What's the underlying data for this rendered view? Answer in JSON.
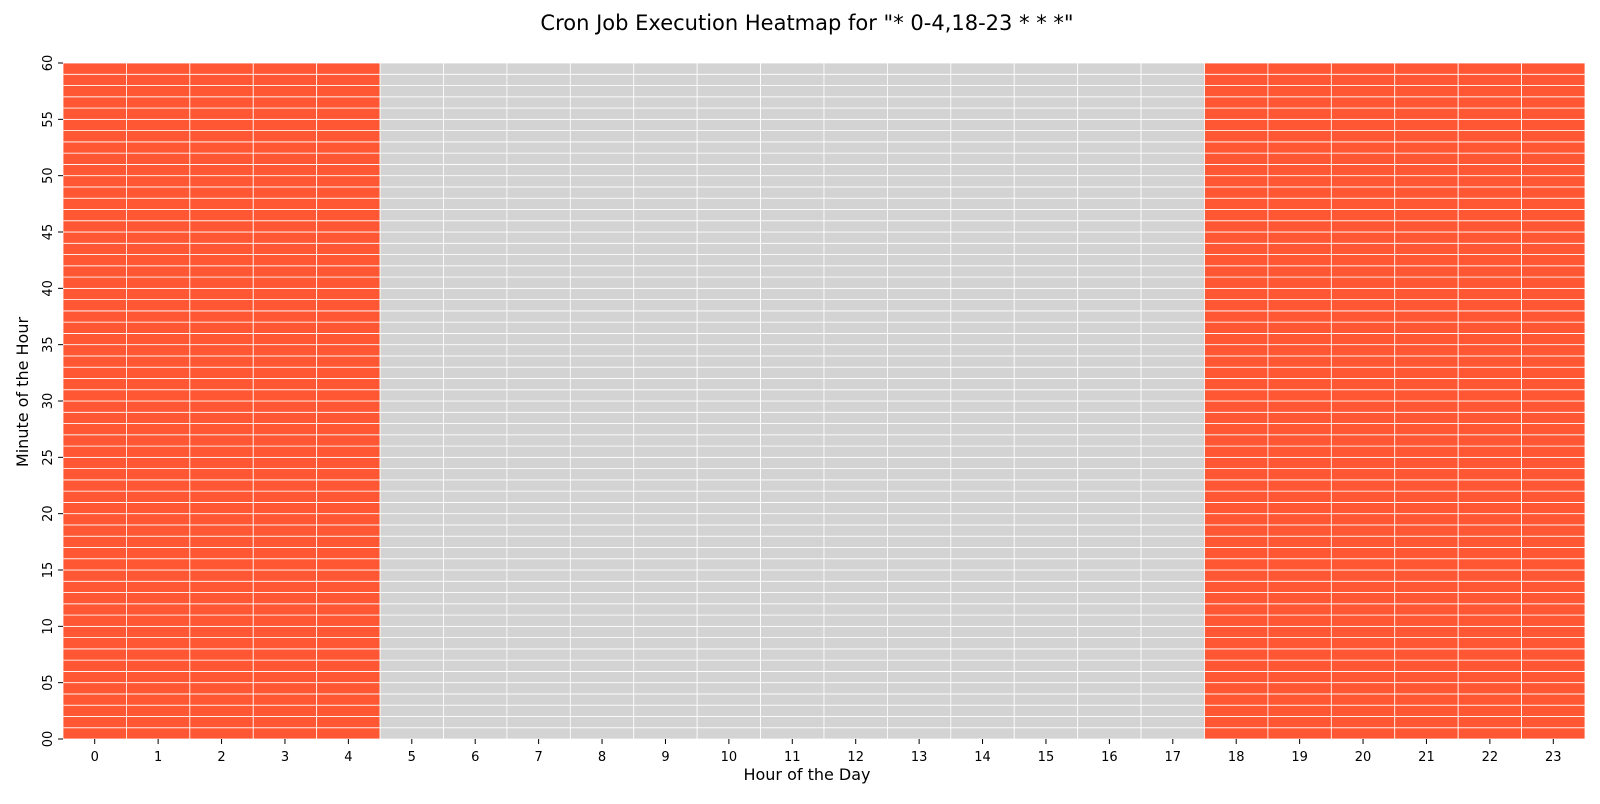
{
  "chart_data": {
    "type": "heatmap",
    "title": "Cron Job Execution Heatmap for \"* 0-4,18-23 * * *\"",
    "xlabel": "Hour of the Day",
    "ylabel": "Minute of the Hour",
    "x": [
      "0",
      "1",
      "2",
      "3",
      "4",
      "5",
      "6",
      "7",
      "8",
      "9",
      "10",
      "11",
      "12",
      "13",
      "14",
      "15",
      "16",
      "17",
      "18",
      "19",
      "20",
      "21",
      "22",
      "23"
    ],
    "y_tick_labels": [
      "00",
      "05",
      "10",
      "15",
      "20",
      "25",
      "30",
      "35",
      "40",
      "45",
      "50",
      "55",
      "60"
    ],
    "ylim": [
      0,
      60
    ],
    "minutes_per_hour": 60,
    "active_hours": [
      0,
      1,
      2,
      3,
      4,
      18,
      19,
      20,
      21,
      22,
      23
    ],
    "values_rule": "cell(hour, minute) = 1 if hour in active_hours else 0",
    "colors": {
      "active": "#ff5733",
      "inactive": "#d3d3d3",
      "grid_lines": "#ffffff"
    },
    "legend": "none",
    "grid": true
  }
}
